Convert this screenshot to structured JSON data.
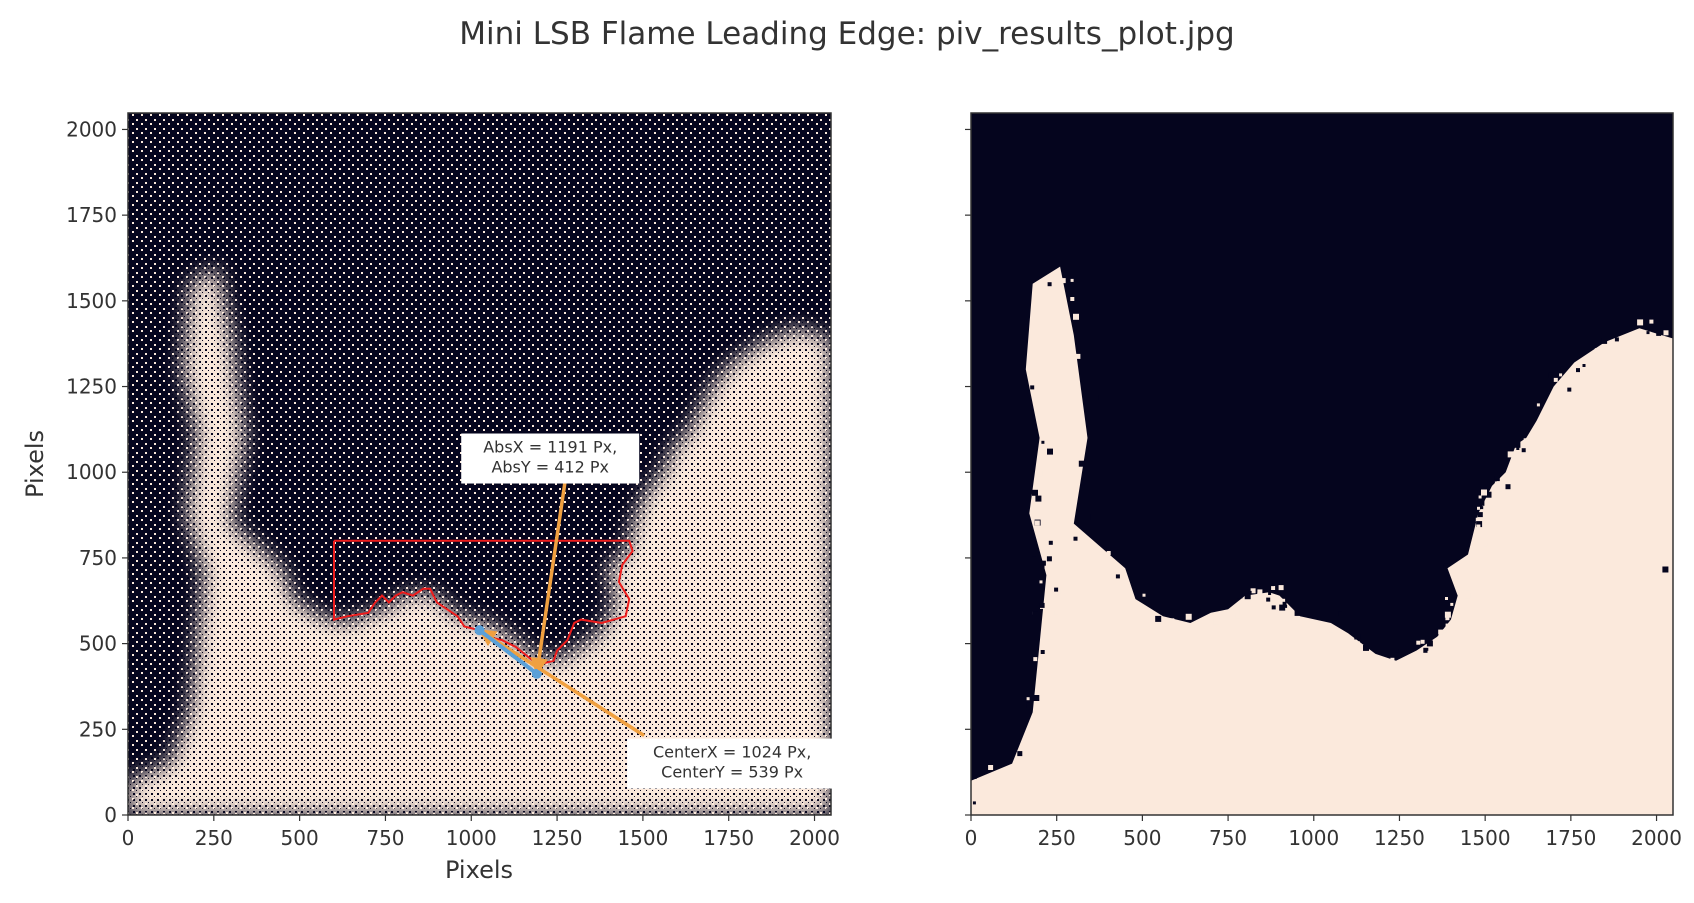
{
  "figure": {
    "suptitle": "Mini LSB Flame Leading Edge: piv_results_plot.jpg"
  },
  "colors": {
    "dark": "#05051e",
    "light": "#fbe9dc",
    "roi": "#ee1c1c",
    "arrow": "#f0a040",
    "marker": "#5aa0d8",
    "text": "#333333"
  },
  "chart_data": [
    {
      "type": "heatmap",
      "name": "particle image",
      "title": "",
      "xlabel": "Pixels",
      "ylabel": "Pixels",
      "xlim": [
        0,
        2048
      ],
      "ylim": [
        0,
        2048
      ],
      "xticks": [
        0,
        250,
        500,
        750,
        1000,
        1250,
        1500,
        1750,
        2000
      ],
      "yticks": [
        0,
        250,
        500,
        750,
        1000,
        1250,
        1500,
        1750,
        2000
      ],
      "roi_polygon": [
        [
          600,
          800
        ],
        [
          1460,
          800
        ],
        [
          1470,
          770
        ],
        [
          1440,
          730
        ],
        [
          1430,
          680
        ],
        [
          1460,
          630
        ],
        [
          1450,
          580
        ],
        [
          1380,
          560
        ],
        [
          1320,
          570
        ],
        [
          1300,
          560
        ],
        [
          1280,
          510
        ],
        [
          1250,
          480
        ],
        [
          1240,
          450
        ],
        [
          1200,
          440
        ],
        [
          1180,
          450
        ],
        [
          1130,
          490
        ],
        [
          1090,
          510
        ],
        [
          1050,
          520
        ],
        [
          1020,
          540
        ],
        [
          980,
          550
        ],
        [
          960,
          580
        ],
        [
          930,
          600
        ],
        [
          900,
          620
        ],
        [
          880,
          660
        ],
        [
          860,
          660
        ],
        [
          830,
          640
        ],
        [
          800,
          650
        ],
        [
          780,
          640
        ],
        [
          760,
          620
        ],
        [
          740,
          640
        ],
        [
          720,
          620
        ],
        [
          700,
          590
        ],
        [
          640,
          580
        ],
        [
          600,
          570
        ],
        [
          600,
          800
        ]
      ],
      "annotations": [
        {
          "id": "abs",
          "label_lines": [
            "AbsX = 1191 Px,",
            "AbsY = 412 Px"
          ],
          "point": [
            1191,
            412
          ],
          "text_center": [
            1230,
            1040
          ]
        },
        {
          "id": "center",
          "label_lines": [
            "CenterX = 1024 Px,",
            "CenterY = 539 Px"
          ],
          "point": [
            1024,
            539
          ],
          "text_center": [
            1760,
            150
          ]
        }
      ]
    },
    {
      "type": "heatmap",
      "name": "binarized flame mask",
      "title": "",
      "xlabel": "",
      "ylabel": "",
      "xlim": [
        0,
        2048
      ],
      "ylim": [
        0,
        2048
      ],
      "xticks": [
        0,
        250,
        500,
        750,
        1000,
        1250,
        1500,
        1750,
        2000
      ],
      "yticks": [
        0,
        250,
        500,
        750,
        1000,
        1250,
        1500,
        1750,
        2000
      ],
      "ytick_labels_visible": false,
      "mask_boundary": [
        [
          0,
          0
        ],
        [
          0,
          100
        ],
        [
          120,
          150
        ],
        [
          180,
          300
        ],
        [
          200,
          500
        ],
        [
          220,
          700
        ],
        [
          170,
          880
        ],
        [
          200,
          1100
        ],
        [
          160,
          1300
        ],
        [
          180,
          1550
        ],
        [
          260,
          1600
        ],
        [
          300,
          1400
        ],
        [
          340,
          1100
        ],
        [
          300,
          850
        ],
        [
          450,
          720
        ],
        [
          480,
          630
        ],
        [
          560,
          580
        ],
        [
          640,
          560
        ],
        [
          700,
          590
        ],
        [
          750,
          600
        ],
        [
          800,
          640
        ],
        [
          870,
          650
        ],
        [
          900,
          640
        ],
        [
          960,
          580
        ],
        [
          1050,
          560
        ],
        [
          1100,
          530
        ],
        [
          1180,
          470
        ],
        [
          1240,
          450
        ],
        [
          1300,
          480
        ],
        [
          1360,
          520
        ],
        [
          1400,
          570
        ],
        [
          1420,
          640
        ],
        [
          1390,
          720
        ],
        [
          1450,
          760
        ],
        [
          1480,
          880
        ],
        [
          1520,
          960
        ],
        [
          1560,
          1000
        ],
        [
          1590,
          1080
        ],
        [
          1620,
          1100
        ],
        [
          1650,
          1150
        ],
        [
          1700,
          1250
        ],
        [
          1760,
          1320
        ],
        [
          1850,
          1380
        ],
        [
          1950,
          1420
        ],
        [
          2048,
          1390
        ],
        [
          2048,
          0
        ]
      ]
    }
  ]
}
